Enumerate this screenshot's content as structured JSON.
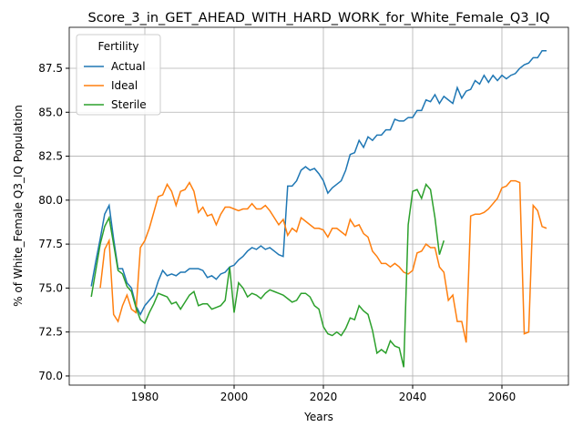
{
  "chart_data": {
    "type": "line",
    "title": "Score_3_in_GET_AHEAD_WITH_HARD_WORK_for_White_Female_Q3_IQ",
    "xlabel": "Years",
    "ylabel": "% of White_Female Q3_IQ Population",
    "legend_title": "Fertility",
    "legend": "upper left",
    "xlim": [
      1963.06,
      2074.9
    ],
    "ylim": [
      69.48,
      89.83
    ],
    "xticks": [
      1980,
      2000,
      2020,
      2040,
      2060
    ],
    "yticks": [
      {
        "value": 70.0,
        "label": "70.0"
      },
      72.5,
      {
        "value": 75.0,
        "label": "75.0"
      },
      77.5,
      {
        "value": 80.0,
        "label": "80.0"
      },
      82.5,
      {
        "value": 85.0,
        "label": "85.0"
      },
      87.5
    ],
    "grid": true,
    "x": [
      1968,
      1969,
      1970,
      1971,
      1972,
      1973,
      1974,
      1975,
      1976,
      1977,
      1978,
      1979,
      1980,
      1981,
      1982,
      1983,
      1984,
      1985,
      1986,
      1987,
      1988,
      1989,
      1990,
      1991,
      1992,
      1993,
      1994,
      1995,
      1996,
      1997,
      1998,
      1999,
      2000,
      2001,
      2002,
      2003,
      2004,
      2005,
      2006,
      2007,
      2008,
      2009,
      2010,
      2011,
      2012,
      2013,
      2014,
      2015,
      2016,
      2017,
      2018,
      2019,
      2020,
      2021,
      2022,
      2023,
      2024,
      2025,
      2026,
      2027,
      2028,
      2029,
      2030,
      2031,
      2032,
      2033,
      2034,
      2035,
      2036,
      2037,
      2038,
      2039,
      2040,
      2041,
      2042,
      2043,
      2044,
      2045,
      2046,
      2047,
      2048,
      2049,
      2050,
      2051,
      2052,
      2053,
      2054,
      2055,
      2056,
      2057,
      2058,
      2059,
      2060,
      2061,
      2062,
      2063,
      2064,
      2065,
      2066,
      2067,
      2068,
      2069,
      2070
    ],
    "series": [
      {
        "name": "Actual",
        "color": "#1f77b4",
        "values": [
          75.1,
          76.5,
          77.8,
          79.2,
          79.7,
          77.8,
          76.1,
          76.1,
          75.3,
          75.0,
          74.0,
          73.5,
          74.0,
          74.3,
          74.6,
          75.4,
          76.0,
          75.7,
          75.8,
          75.7,
          75.9,
          75.9,
          76.1,
          76.1,
          76.1,
          76.0,
          75.6,
          75.7,
          75.5,
          75.8,
          75.9,
          76.2,
          76.3,
          76.6,
          76.8,
          77.1,
          77.3,
          77.2,
          77.4,
          77.2,
          77.3,
          77.1,
          76.9,
          76.8,
          80.8,
          80.8,
          81.1,
          81.7,
          81.9,
          81.7,
          81.8,
          81.5,
          81.1,
          80.4,
          80.7,
          80.9,
          81.1,
          81.7,
          82.6,
          82.7,
          83.4,
          83.0,
          83.6,
          83.4,
          83.7,
          83.7,
          84.0,
          84.0,
          84.6,
          84.5,
          84.5,
          84.7,
          84.7,
          85.1,
          85.1,
          85.7,
          85.6,
          86.0,
          85.5,
          85.9,
          85.7,
          85.5,
          86.4,
          85.8,
          86.2,
          86.3,
          86.8,
          86.6,
          87.1,
          86.7,
          87.1,
          86.8,
          87.1,
          86.9,
          87.1,
          87.2,
          87.5,
          87.7,
          87.8,
          88.1,
          88.1,
          88.5,
          88.5
        ]
      },
      {
        "name": "Ideal",
        "color": "#ff7f0e",
        "values": [
          null,
          null,
          75.0,
          77.2,
          77.7,
          73.5,
          73.1,
          74.0,
          74.6,
          73.8,
          73.6,
          77.3,
          77.7,
          78.4,
          79.3,
          80.2,
          80.3,
          80.9,
          80.5,
          79.7,
          80.5,
          80.6,
          81.0,
          80.5,
          79.3,
          79.6,
          79.1,
          79.2,
          78.6,
          79.2,
          79.6,
          79.6,
          79.5,
          79.4,
          79.5,
          79.5,
          79.8,
          79.5,
          79.5,
          79.7,
          79.4,
          79.0,
          78.6,
          78.9,
          78.0,
          78.4,
          78.2,
          79.0,
          78.8,
          78.6,
          78.4,
          78.4,
          78.3,
          77.9,
          78.4,
          78.4,
          78.2,
          78.0,
          78.9,
          78.5,
          78.6,
          78.1,
          77.9,
          77.1,
          76.8,
          76.4,
          76.4,
          76.2,
          76.4,
          76.2,
          75.9,
          75.8,
          76.0,
          77.0,
          77.1,
          77.5,
          77.3,
          77.3,
          76.2,
          75.9,
          74.3,
          74.6,
          73.1,
          73.1,
          71.9,
          79.1,
          79.2,
          79.2,
          79.3,
          79.5,
          79.8,
          80.1,
          80.7,
          80.8,
          81.1,
          81.1,
          81.0,
          72.4,
          72.5,
          79.7,
          79.4,
          78.5,
          78.4
        ]
      },
      {
        "name": "Sterile",
        "color": "#2ca02c",
        "values": [
          74.5,
          76.0,
          77.5,
          78.5,
          79.0,
          77.5,
          76.0,
          75.8,
          75.1,
          74.8,
          73.9,
          73.2,
          73.0,
          73.6,
          74.1,
          74.7,
          74.6,
          74.5,
          74.1,
          74.2,
          73.8,
          74.2,
          74.6,
          74.8,
          74.0,
          74.1,
          74.1,
          73.8,
          73.9,
          74.0,
          74.3,
          76.2,
          73.6,
          75.3,
          75.0,
          74.5,
          74.7,
          74.6,
          74.4,
          74.7,
          74.9,
          74.8,
          74.7,
          74.6,
          74.4,
          74.2,
          74.3,
          74.7,
          74.7,
          74.5,
          74.0,
          73.8,
          72.8,
          72.4,
          72.3,
          72.5,
          72.3,
          72.7,
          73.3,
          73.2,
          74.0,
          73.7,
          73.5,
          72.6,
          71.3,
          71.5,
          71.3,
          72.0,
          71.7,
          71.6,
          70.5,
          78.6,
          80.5,
          80.6,
          80.1,
          80.9,
          80.6,
          79.0,
          76.9,
          77.7,
          null,
          null,
          null,
          null,
          null,
          null,
          null,
          null,
          null,
          null,
          null,
          null,
          null,
          null,
          null,
          null,
          null,
          null,
          null,
          null,
          null,
          null,
          null
        ]
      }
    ]
  }
}
